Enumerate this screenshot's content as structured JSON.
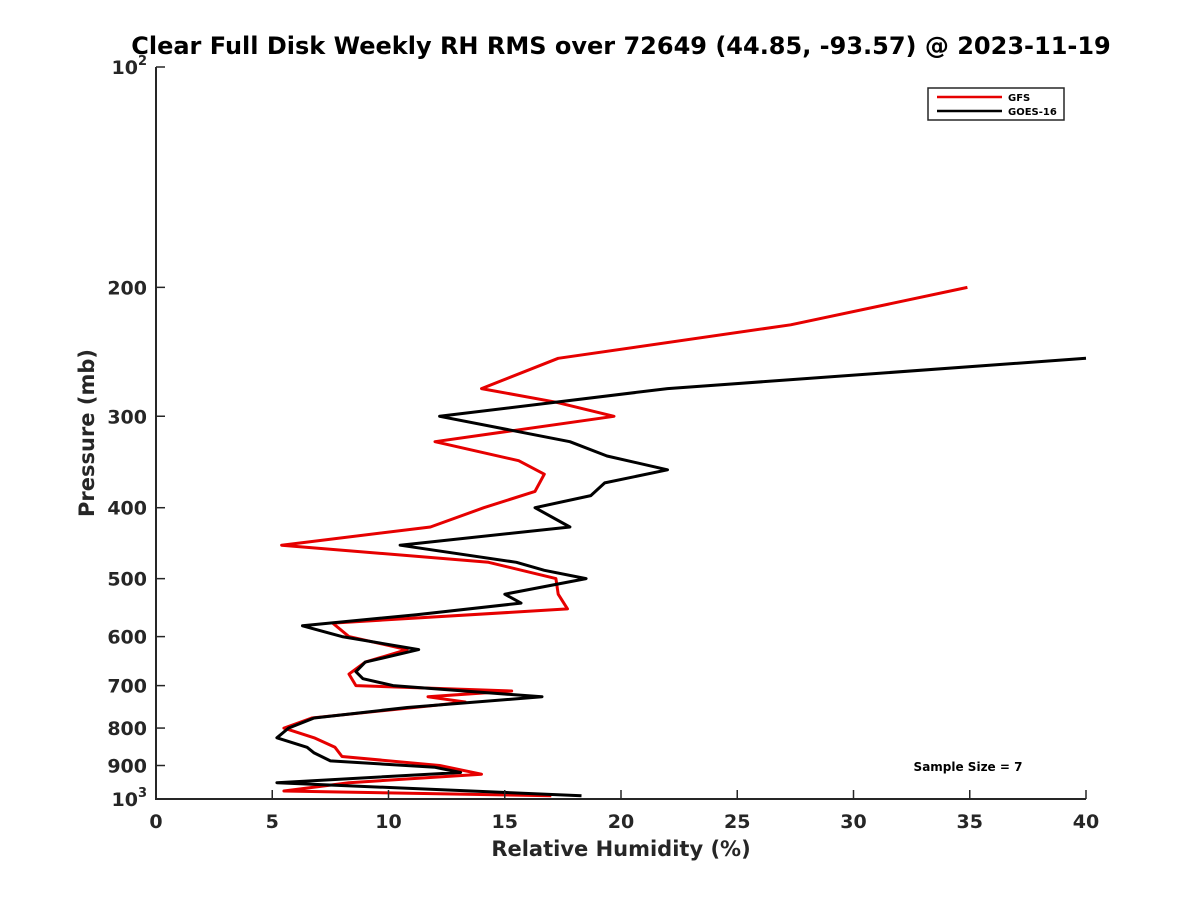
{
  "chart_data": {
    "type": "line",
    "title": "Clear Full Disk Weekly RH RMS over 72649 (44.85, -93.57) @ 2023-11-19",
    "xlabel": "Relative Humidity (%)",
    "ylabel": "Pressure (mb)",
    "xlim": [
      0,
      40
    ],
    "ylim": [
      100,
      1000
    ],
    "y_scale": "log",
    "y_reversed": true,
    "x_ticks": [
      "0",
      "5",
      "10",
      "15",
      "20",
      "25",
      "30",
      "35",
      "40"
    ],
    "y_ticks": [
      {
        "value": 100,
        "base": "10",
        "exp": "2"
      },
      {
        "value": 200,
        "label": "200"
      },
      {
        "value": 300,
        "label": "300"
      },
      {
        "value": 400,
        "label": "400"
      },
      {
        "value": 500,
        "label": "500"
      },
      {
        "value": 600,
        "label": "600"
      },
      {
        "value": 700,
        "label": "700"
      },
      {
        "value": 800,
        "label": "800"
      },
      {
        "value": 900,
        "label": "900"
      },
      {
        "value": 1000,
        "base": "10",
        "exp": "3"
      }
    ],
    "grid": false,
    "legend": "top-right",
    "annotation": "Sample Size = 7",
    "series": [
      {
        "name": "GFS",
        "color": "#e60000",
        "points": [
          [
            34.9,
            200
          ],
          [
            27.3,
            225
          ],
          [
            17.3,
            250
          ],
          [
            14.0,
            275
          ],
          [
            17.2,
            287
          ],
          [
            19.7,
            300
          ],
          [
            12.0,
            325
          ],
          [
            15.6,
            345
          ],
          [
            16.7,
            360
          ],
          [
            16.3,
            380
          ],
          [
            14.1,
            400
          ],
          [
            11.8,
            425
          ],
          [
            5.4,
            450
          ],
          [
            14.3,
            475
          ],
          [
            17.2,
            500
          ],
          [
            17.3,
            525
          ],
          [
            17.7,
            550
          ],
          [
            7.6,
            575
          ],
          [
            8.3,
            600
          ],
          [
            10.8,
            625
          ],
          [
            9.0,
            650
          ],
          [
            8.3,
            675
          ],
          [
            8.6,
            700
          ],
          [
            15.3,
            712
          ],
          [
            11.7,
            725
          ],
          [
            13.3,
            737
          ],
          [
            12.3,
            743
          ],
          [
            6.7,
            775
          ],
          [
            5.5,
            800
          ],
          [
            6.8,
            825
          ],
          [
            7.7,
            850
          ],
          [
            8.0,
            875
          ],
          [
            12.2,
            900
          ],
          [
            14.0,
            925
          ],
          [
            8.3,
            950
          ],
          [
            5.5,
            975
          ],
          [
            17.0,
            990
          ]
        ]
      },
      {
        "name": "GOES-16",
        "color": "#000000",
        "points": [
          [
            40.0,
            250
          ],
          [
            22.0,
            275
          ],
          [
            12.2,
            300
          ],
          [
            17.8,
            325
          ],
          [
            19.4,
            340
          ],
          [
            22.0,
            355
          ],
          [
            19.3,
            370
          ],
          [
            18.7,
            385
          ],
          [
            16.3,
            400
          ],
          [
            17.8,
            425
          ],
          [
            10.5,
            450
          ],
          [
            15.5,
            475
          ],
          [
            16.7,
            487
          ],
          [
            18.5,
            500
          ],
          [
            15.0,
            525
          ],
          [
            15.7,
            540
          ],
          [
            11.2,
            560
          ],
          [
            6.3,
            580
          ],
          [
            8.0,
            600
          ],
          [
            11.3,
            625
          ],
          [
            9.0,
            650
          ],
          [
            8.6,
            670
          ],
          [
            8.9,
            685
          ],
          [
            10.2,
            700
          ],
          [
            16.6,
            725
          ],
          [
            10.8,
            750
          ],
          [
            6.8,
            775
          ],
          [
            5.7,
            800
          ],
          [
            5.2,
            825
          ],
          [
            6.5,
            850
          ],
          [
            6.8,
            865
          ],
          [
            7.5,
            887
          ],
          [
            12.0,
            905
          ],
          [
            13.1,
            920
          ],
          [
            5.2,
            950
          ],
          [
            18.3,
            990
          ]
        ]
      }
    ]
  }
}
